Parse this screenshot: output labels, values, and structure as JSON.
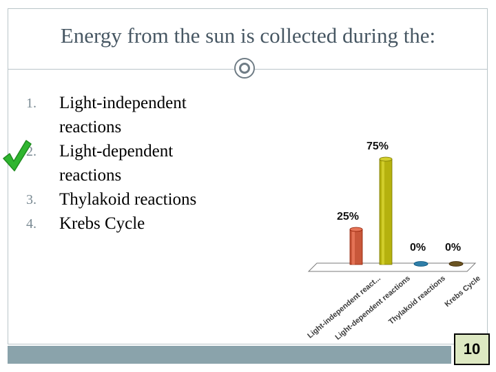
{
  "slide": {
    "title": "Energy from the sun is collected during the:",
    "answers": [
      {
        "number": "1.",
        "text": "Light-independent reactions"
      },
      {
        "number": "2.",
        "text": "Light-dependent reactions"
      },
      {
        "number": "3.",
        "text": "Thylakoid reactions"
      },
      {
        "number": "4.",
        "text": "Krebs Cycle"
      }
    ],
    "correct_answer_index": 1,
    "response_counter": "10",
    "colors": {
      "title": "#475763",
      "check": "#2fb52f",
      "counter_bg": "#dde8c2",
      "bar_strip": "#8aa3ab"
    }
  },
  "chart_data": {
    "type": "bar",
    "categories": [
      "Light-independent react...",
      "Light-dependent reactions",
      "Thylakoid reactions",
      "Krebs Cycle"
    ],
    "values": [
      25,
      75,
      0,
      0
    ],
    "value_labels": [
      "25%",
      "75%",
      "0%",
      "0%"
    ],
    "ylim": [
      0,
      100
    ],
    "colors": [
      "#c8573a",
      "#b5b10e",
      "#2f7ea8",
      "#6b5422"
    ],
    "grid": false,
    "legend": "none"
  }
}
